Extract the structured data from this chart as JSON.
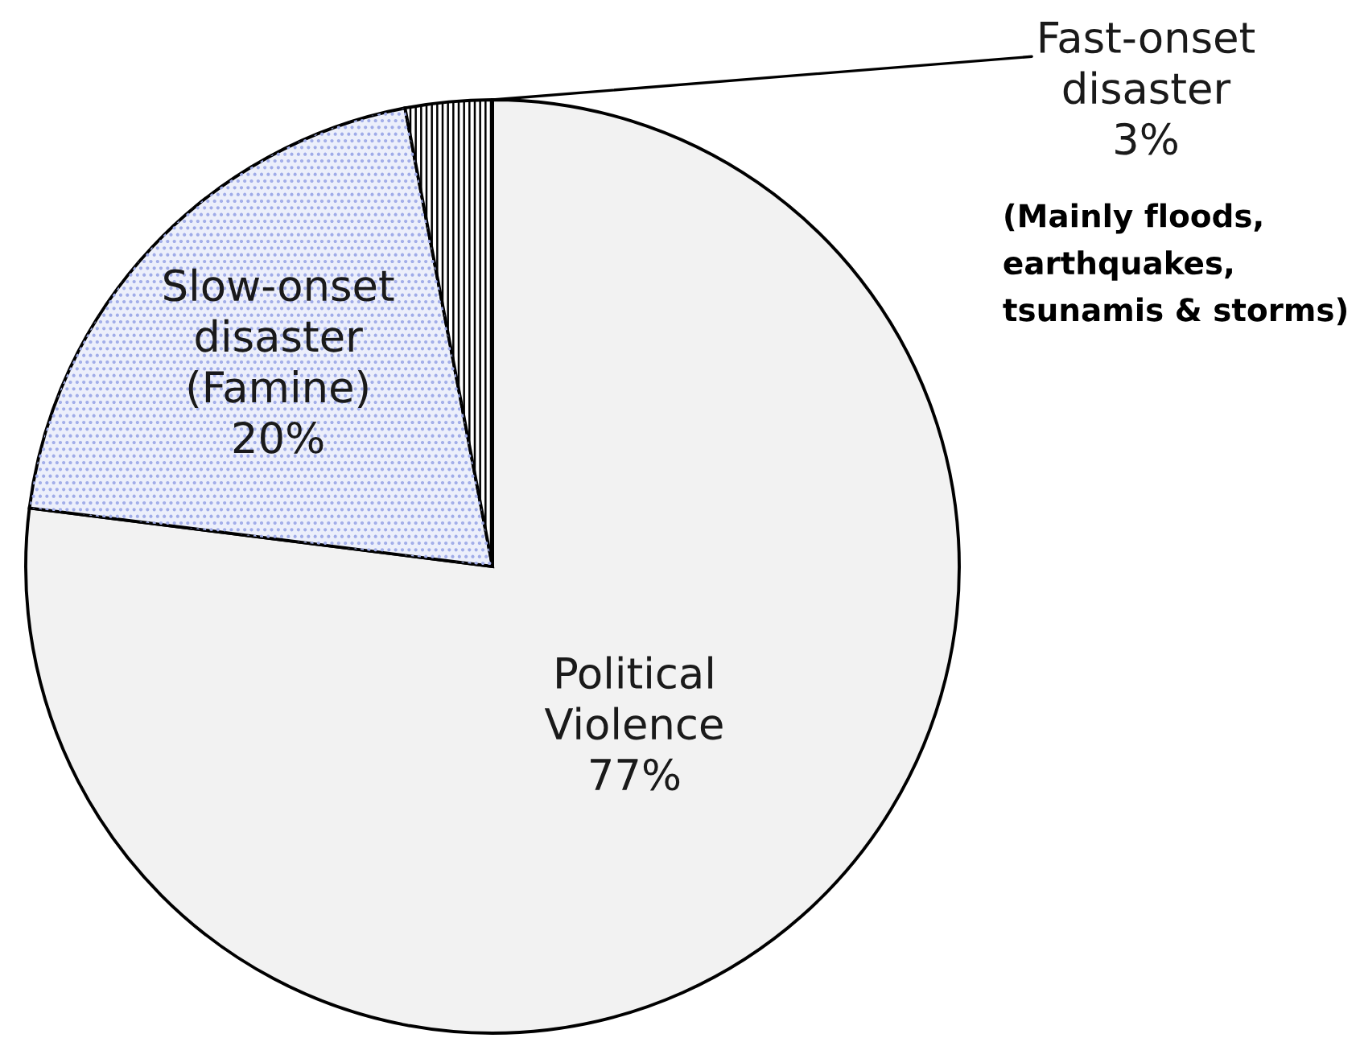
{
  "chart_data": {
    "type": "pie",
    "categories": [
      "Political\nViolence",
      "Slow-onset\ndisaster\n(Famine)",
      "Fast-onset\ndisaster"
    ],
    "values": [
      77,
      20,
      3
    ],
    "value_labels": [
      "77%",
      "20%",
      "3%"
    ],
    "colors": [
      "#f2f2f2",
      "#eceffb",
      "#ffffff"
    ],
    "annotations": [
      "(Mainly floods,\nearthquakes,\ntsunamis & storms)"
    ]
  }
}
